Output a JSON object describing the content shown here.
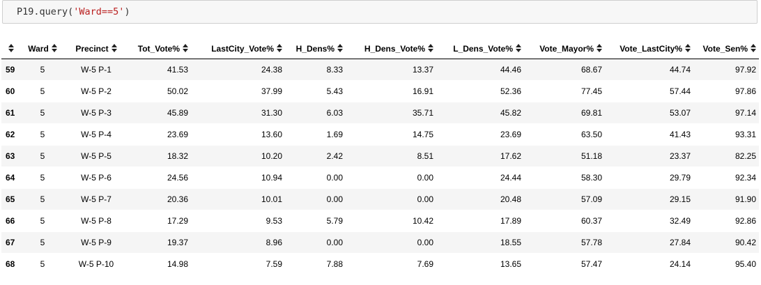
{
  "code_cell": {
    "prefix": "P19.query(",
    "string_arg": "'Ward==5'",
    "suffix": ")"
  },
  "table": {
    "columns": [
      "",
      "Ward",
      "Precinct",
      "Tot_Vote%",
      "LastCity_Vote%",
      "H_Dens%",
      "H_Dens_Vote%",
      "L_Dens_Vote%",
      "Vote_Mayor%",
      "Vote_LastCity%",
      "Vote_Sen%"
    ],
    "rows": [
      [
        "59",
        "5",
        "W-5 P-1",
        "41.53",
        "24.38",
        "8.33",
        "13.37",
        "44.46",
        "68.67",
        "44.74",
        "97.92"
      ],
      [
        "60",
        "5",
        "W-5 P-2",
        "50.02",
        "37.99",
        "5.43",
        "16.91",
        "52.36",
        "77.45",
        "57.44",
        "97.86"
      ],
      [
        "61",
        "5",
        "W-5 P-3",
        "45.89",
        "31.30",
        "6.03",
        "35.71",
        "45.82",
        "69.81",
        "53.07",
        "97.14"
      ],
      [
        "62",
        "5",
        "W-5 P-4",
        "23.69",
        "13.60",
        "1.69",
        "14.75",
        "23.69",
        "63.50",
        "41.43",
        "93.31"
      ],
      [
        "63",
        "5",
        "W-5 P-5",
        "18.32",
        "10.20",
        "2.42",
        "8.51",
        "17.62",
        "51.18",
        "23.37",
        "82.25"
      ],
      [
        "64",
        "5",
        "W-5 P-6",
        "24.56",
        "10.94",
        "0.00",
        "0.00",
        "24.44",
        "58.30",
        "29.79",
        "92.34"
      ],
      [
        "65",
        "5",
        "W-5 P-7",
        "20.36",
        "10.01",
        "0.00",
        "0.00",
        "20.48",
        "57.09",
        "29.15",
        "91.90"
      ],
      [
        "66",
        "5",
        "W-5 P-8",
        "17.29",
        "9.53",
        "5.79",
        "10.42",
        "17.89",
        "60.37",
        "32.49",
        "92.86"
      ],
      [
        "67",
        "5",
        "W-5 P-9",
        "19.37",
        "8.96",
        "0.00",
        "0.00",
        "18.55",
        "57.78",
        "27.84",
        "90.42"
      ],
      [
        "68",
        "5",
        "W-5 P-10",
        "14.98",
        "7.59",
        "7.88",
        "7.69",
        "13.65",
        "57.47",
        "24.14",
        "95.40"
      ]
    ]
  },
  "icons": {
    "sort": "sort-arrows-icon"
  },
  "colors": {
    "code_string": "#ba2121",
    "row_stripe": "#f5f5f5",
    "cell_border": "#cfcfcf"
  }
}
